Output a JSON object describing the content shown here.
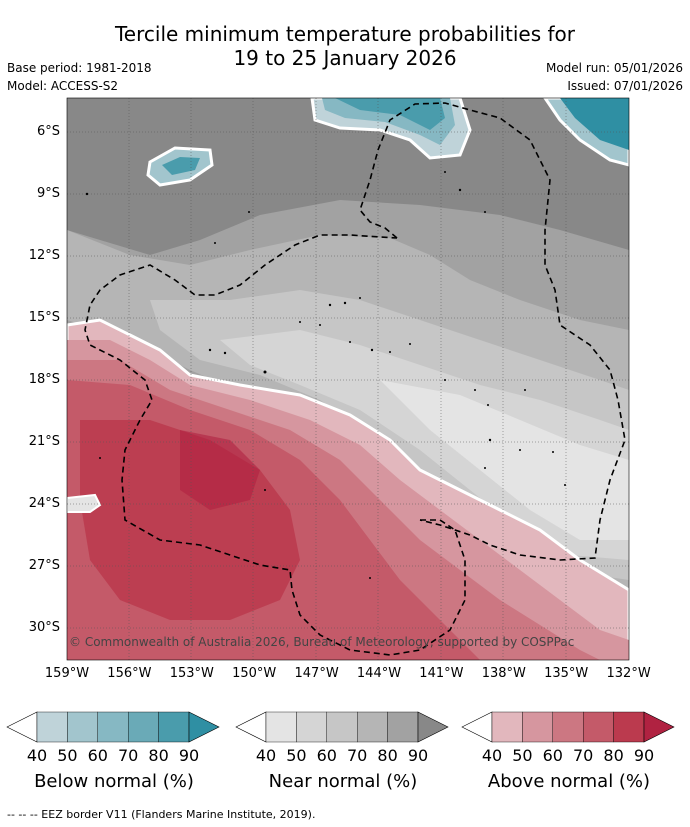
{
  "header": {
    "title_line1": "Tercile minimum temperature probabilities for",
    "title_line2": "19 to 25 January 2026",
    "base_period": "Base period: 1981-2018",
    "model": "Model: ACCESS-S2",
    "model_run": "Model run: 05/01/2026",
    "issued": "Issued: 07/01/2026"
  },
  "map": {
    "lat_labels": [
      "6°S",
      "9°S",
      "12°S",
      "15°S",
      "18°S",
      "21°S",
      "24°S",
      "27°S",
      "30°S"
    ],
    "lon_labels": [
      "159°W",
      "156°W",
      "153°W",
      "150°W",
      "147°W",
      "144°W",
      "141°W",
      "138°W",
      "135°W",
      "132°W"
    ],
    "copyright": "© Commonwealth of Australia 2026, Bureau of Meteorology, supported by COSPPac"
  },
  "legend": {
    "ticks": [
      "40",
      "50",
      "60",
      "70",
      "80",
      "90"
    ],
    "below": {
      "label": "Below normal (%)",
      "colors": [
        "#bfd3d9",
        "#a2c5cd",
        "#86b8c3",
        "#6aaab7",
        "#4a9cac",
        "#2f8fa3"
      ]
    },
    "near": {
      "label": "Near normal (%)",
      "colors": [
        "#e4e4e4",
        "#d5d5d5",
        "#c6c6c6",
        "#b5b5b5",
        "#a2a2a2",
        "#888888"
      ]
    },
    "above": {
      "label": "Above normal (%)",
      "colors": [
        "#e2b7bd",
        "#d6969f",
        "#cc7782",
        "#c45a69",
        "#bb3a4e",
        "#b02241"
      ]
    }
  },
  "footer": {
    "eez_note": "--  --  -- EEZ border V11 (Flanders Marine Institute, 2019)."
  }
}
